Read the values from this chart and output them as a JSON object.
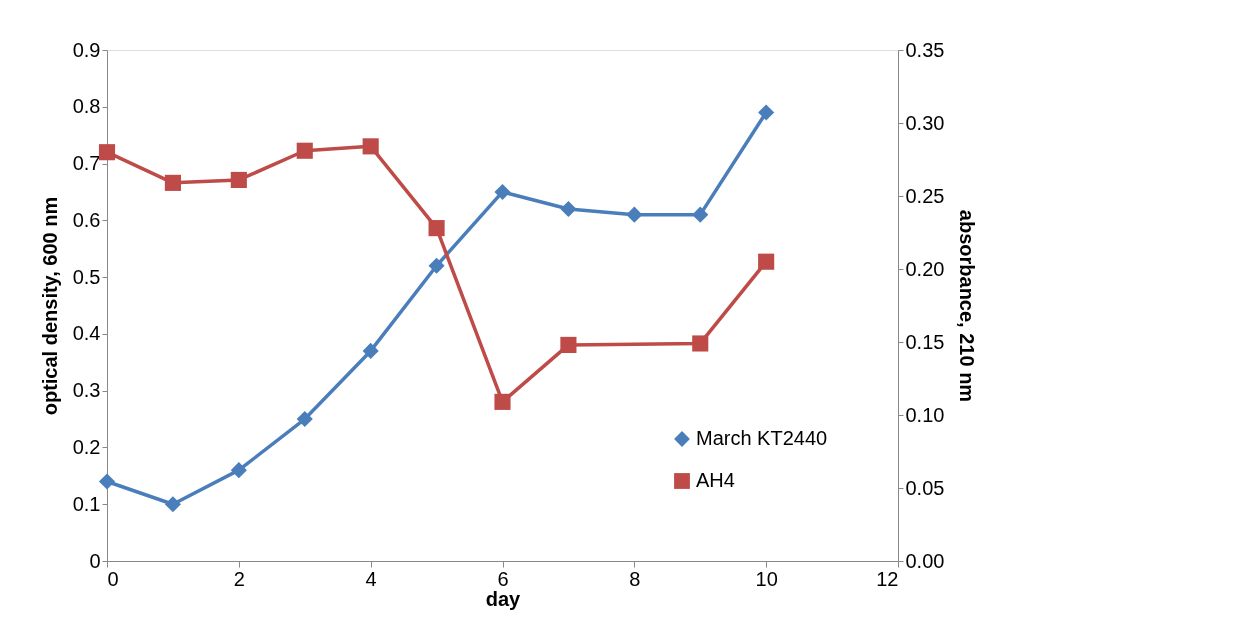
{
  "chart_data": {
    "type": "line",
    "xlabel": "day",
    "ylabel": "optical density, 600 nm",
    "y2label": "absorbance, 210 nm",
    "xlim": [
      0,
      12
    ],
    "xticks": [
      0,
      2,
      4,
      6,
      8,
      10,
      12
    ],
    "ylim": [
      0,
      0.9
    ],
    "yticks": [
      0,
      0.1,
      0.2,
      0.3,
      0.4,
      0.5,
      0.6,
      0.7,
      0.8,
      0.9
    ],
    "y2lim": [
      0,
      0.35
    ],
    "y2ticks": [
      {
        "value": 0,
        "label": "0.00"
      },
      0.05,
      {
        "value": 0.1,
        "label": "0.10"
      },
      0.15,
      {
        "value": 0.2,
        "label": "0.20"
      },
      0.25,
      {
        "value": 0.3,
        "label": "0.30"
      },
      0.35
    ],
    "grid": false,
    "legend": "bottom right",
    "line_style": "solid",
    "series": [
      {
        "name": "March KT2440",
        "color": "#4a7ebb",
        "marker": "diamond",
        "x": [
          0,
          1,
          2,
          3,
          4,
          5,
          6,
          7,
          8,
          9,
          10
        ],
        "values": [
          0.14,
          0.1,
          0.16,
          0.25,
          0.37,
          0.52,
          0.65,
          0.62,
          0.61,
          0.61,
          0.79
        ]
      },
      {
        "name": "AH4",
        "color": "#be4b48",
        "marker": "square",
        "axis": "y2",
        "x": [
          0,
          1,
          2,
          3,
          4,
          5,
          6,
          7,
          9,
          10
        ],
        "values": [
          0.28,
          0.259,
          0.261,
          0.281,
          0.284,
          0.228,
          0.109,
          0.148,
          0.149,
          0.205
        ]
      }
    ]
  }
}
